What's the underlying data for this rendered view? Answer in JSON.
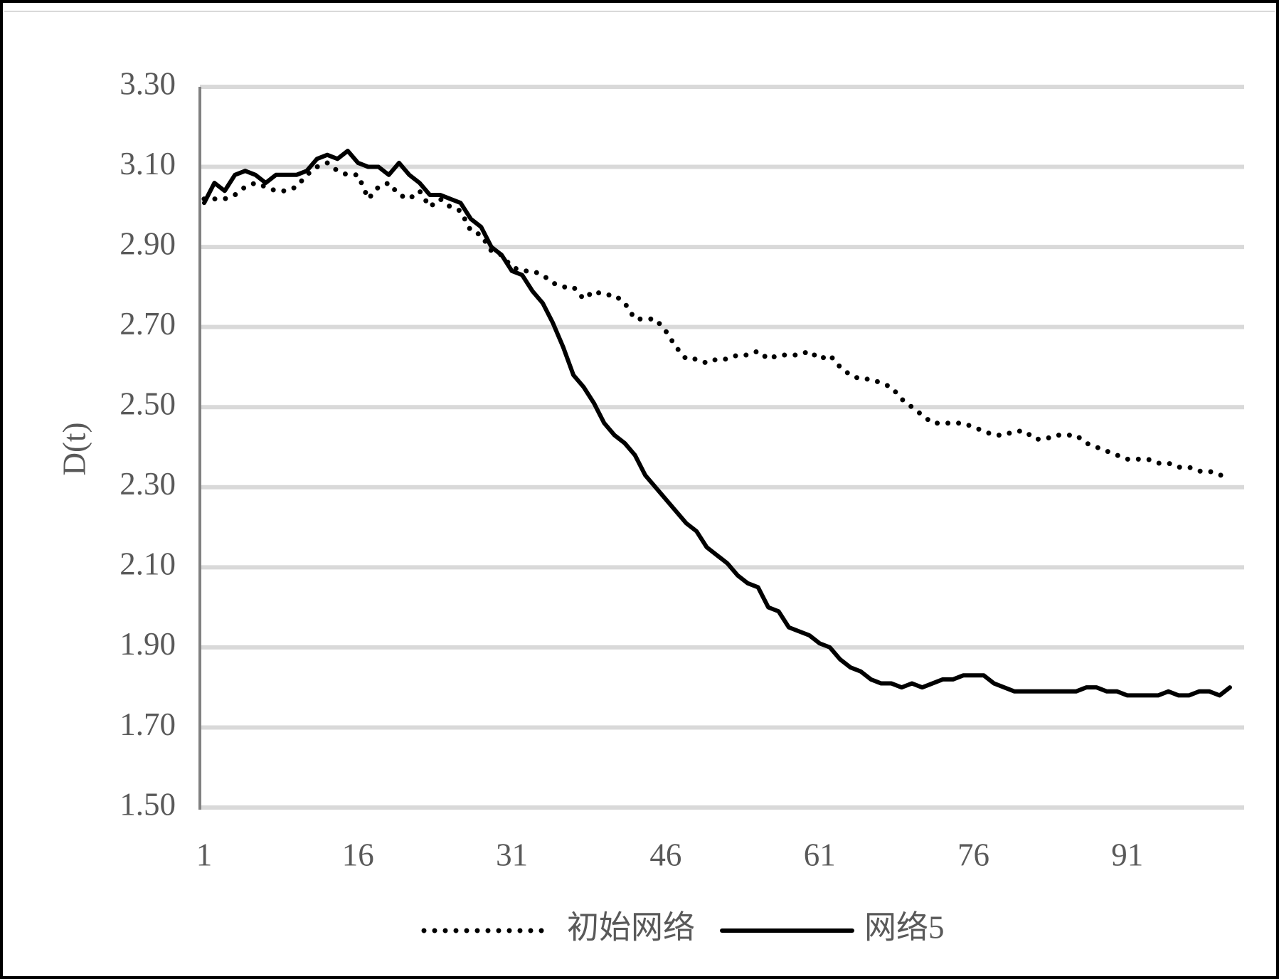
{
  "chart_data": {
    "type": "line",
    "y_label": "D(t)",
    "x": [
      1,
      2,
      3,
      4,
      5,
      6,
      7,
      8,
      9,
      10,
      11,
      12,
      13,
      14,
      15,
      16,
      17,
      18,
      19,
      20,
      21,
      22,
      23,
      24,
      25,
      26,
      27,
      28,
      29,
      30,
      31,
      32,
      33,
      34,
      35,
      36,
      37,
      38,
      39,
      40,
      41,
      42,
      43,
      44,
      45,
      46,
      47,
      48,
      49,
      50,
      51,
      52,
      53,
      54,
      55,
      56,
      57,
      58,
      59,
      60,
      61,
      62,
      63,
      64,
      65,
      66,
      67,
      68,
      69,
      70,
      71,
      72,
      73,
      74,
      75,
      76,
      77,
      78,
      79,
      80,
      81,
      82,
      83,
      84,
      85,
      86,
      87,
      88,
      89,
      90,
      91,
      92,
      93,
      94,
      95,
      96,
      97,
      98,
      99,
      100,
      101
    ],
    "xlim": [
      1,
      101
    ],
    "xticks": [
      1,
      16,
      31,
      46,
      61,
      76,
      91
    ],
    "ylim": [
      1.5,
      3.3
    ],
    "yticks": [
      {
        "value": 1.5,
        "label": "1.50"
      },
      {
        "value": 1.7,
        "label": "1.70"
      },
      {
        "value": 1.9,
        "label": "1.90"
      },
      {
        "value": 2.1,
        "label": "2.10"
      },
      {
        "value": 2.3,
        "label": "2.30"
      },
      {
        "value": 2.5,
        "label": "2.50"
      },
      {
        "value": 2.7,
        "label": "2.70"
      },
      {
        "value": 2.9,
        "label": "2.90"
      },
      {
        "value": 3.1,
        "label": "3.10"
      },
      {
        "value": 3.3,
        "label": "3.30"
      }
    ],
    "grid": true,
    "legend": "bottom",
    "series": [
      {
        "name": "初始网络",
        "color": "#000000",
        "dash": "dotted",
        "values": [
          3.02,
          3.02,
          3.02,
          3.03,
          3.05,
          3.06,
          3.05,
          3.04,
          3.04,
          3.05,
          3.08,
          3.1,
          3.11,
          3.09,
          3.08,
          3.08,
          3.02,
          3.05,
          3.06,
          3.03,
          3.02,
          3.04,
          3.0,
          3.02,
          3.0,
          2.99,
          2.94,
          2.93,
          2.89,
          2.88,
          2.85,
          2.84,
          2.84,
          2.83,
          2.81,
          2.8,
          2.8,
          2.77,
          2.79,
          2.78,
          2.78,
          2.76,
          2.72,
          2.72,
          2.72,
          2.69,
          2.65,
          2.62,
          2.62,
          2.61,
          2.62,
          2.62,
          2.63,
          2.63,
          2.64,
          2.62,
          2.63,
          2.63,
          2.63,
          2.64,
          2.62,
          2.63,
          2.6,
          2.58,
          2.57,
          2.57,
          2.56,
          2.55,
          2.52,
          2.5,
          2.48,
          2.46,
          2.46,
          2.46,
          2.46,
          2.45,
          2.44,
          2.43,
          2.43,
          2.44,
          2.44,
          2.42,
          2.42,
          2.43,
          2.43,
          2.43,
          2.41,
          2.4,
          2.39,
          2.38,
          2.37,
          2.37,
          2.37,
          2.36,
          2.36,
          2.35,
          2.35,
          2.34,
          2.34,
          2.33,
          2.33
        ]
      },
      {
        "name": "网络5",
        "color": "#000000",
        "dash": "solid",
        "values": [
          3.01,
          3.06,
          3.04,
          3.08,
          3.09,
          3.08,
          3.06,
          3.08,
          3.08,
          3.08,
          3.09,
          3.12,
          3.13,
          3.12,
          3.14,
          3.11,
          3.1,
          3.1,
          3.08,
          3.11,
          3.08,
          3.06,
          3.03,
          3.03,
          3.02,
          3.01,
          2.97,
          2.95,
          2.9,
          2.88,
          2.84,
          2.83,
          2.79,
          2.76,
          2.71,
          2.65,
          2.58,
          2.55,
          2.51,
          2.46,
          2.43,
          2.41,
          2.38,
          2.33,
          2.3,
          2.27,
          2.24,
          2.21,
          2.19,
          2.15,
          2.13,
          2.11,
          2.08,
          2.06,
          2.05,
          2.0,
          1.99,
          1.95,
          1.94,
          1.93,
          1.91,
          1.9,
          1.87,
          1.85,
          1.84,
          1.82,
          1.81,
          1.81,
          1.8,
          1.81,
          1.8,
          1.81,
          1.82,
          1.82,
          1.83,
          1.83,
          1.83,
          1.81,
          1.8,
          1.79,
          1.79,
          1.79,
          1.79,
          1.79,
          1.79,
          1.79,
          1.8,
          1.8,
          1.79,
          1.79,
          1.78,
          1.78,
          1.78,
          1.78,
          1.79,
          1.78,
          1.78,
          1.79,
          1.79,
          1.78,
          1.8
        ]
      }
    ]
  }
}
